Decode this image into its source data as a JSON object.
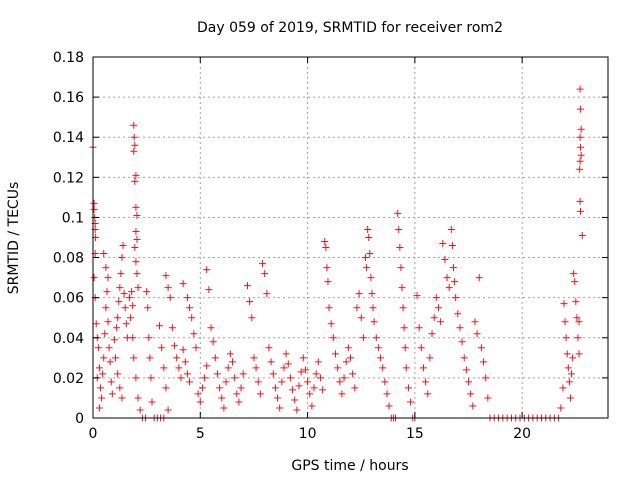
{
  "chart_data": {
    "type": "scatter",
    "title": "Day 059 of 2019, SRMTID for receiver rom2",
    "xlabel": "GPS time / hours",
    "ylabel": "SRMTID / TECUs",
    "xlim": [
      0,
      24
    ],
    "ylim": [
      0,
      0.18
    ],
    "x_ticks": [
      0,
      5,
      10,
      15,
      20
    ],
    "x_tick_labels": [
      "0",
      "5",
      "10",
      "15",
      "20"
    ],
    "y_ticks": [
      0,
      0.02,
      0.04,
      0.06,
      0.08,
      0.1,
      0.12,
      0.14,
      0.16,
      0.18
    ],
    "y_tick_labels": [
      "0",
      "0.02",
      "0.04",
      "0.06",
      "0.08",
      "0.1",
      "0.12",
      "0.14",
      "0.16",
      "0.18"
    ],
    "grid": true,
    "marker": "+",
    "series": [
      {
        "name": "SRMTID",
        "color": "#e41a1c",
        "points": [
          [
            0.0,
            0.135
          ],
          [
            0.05,
            0.107
          ],
          [
            0.05,
            0.104
          ],
          [
            0.08,
            0.1
          ],
          [
            0.1,
            0.097
          ],
          [
            0.1,
            0.094
          ],
          [
            0.12,
            0.09
          ],
          [
            0.1,
            0.082
          ],
          [
            0.05,
            0.07
          ],
          [
            0.1,
            0.06
          ],
          [
            0.15,
            0.047
          ],
          [
            0.2,
            0.04
          ],
          [
            0.25,
            0.035
          ],
          [
            0.3,
            0.025
          ],
          [
            0.2,
            0.02
          ],
          [
            0.35,
            0.015
          ],
          [
            0.4,
            0.01
          ],
          [
            0.3,
            0.005
          ],
          [
            0.45,
            0.022
          ],
          [
            0.5,
            0.03
          ],
          [
            0.55,
            0.042
          ],
          [
            0.6,
            0.055
          ],
          [
            0.65,
            0.063
          ],
          [
            0.7,
            0.048
          ],
          [
            0.75,
            0.035
          ],
          [
            0.8,
            0.028
          ],
          [
            0.85,
            0.018
          ],
          [
            0.9,
            0.012
          ],
          [
            0.5,
            0.082
          ],
          [
            0.6,
            0.075
          ],
          [
            0.7,
            0.07
          ],
          [
            1.0,
            0.039
          ],
          [
            1.1,
            0.045
          ],
          [
            1.15,
            0.05
          ],
          [
            1.2,
            0.058
          ],
          [
            1.25,
            0.065
          ],
          [
            1.3,
            0.072
          ],
          [
            1.35,
            0.08
          ],
          [
            1.4,
            0.086
          ],
          [
            1.45,
            0.062
          ],
          [
            1.5,
            0.055
          ],
          [
            1.55,
            0.047
          ],
          [
            1.6,
            0.04
          ],
          [
            1.05,
            0.03
          ],
          [
            1.15,
            0.022
          ],
          [
            1.25,
            0.015
          ],
          [
            1.35,
            0.01
          ],
          [
            1.7,
            0.06
          ],
          [
            1.8,
            0.063
          ],
          [
            1.85,
            0.056
          ],
          [
            1.75,
            0.05
          ],
          [
            1.9,
            0.146
          ],
          [
            1.92,
            0.14
          ],
          [
            1.95,
            0.136
          ],
          [
            1.9,
            0.133
          ],
          [
            2.0,
            0.121
          ],
          [
            1.95,
            0.118
          ],
          [
            2.0,
            0.105
          ],
          [
            2.05,
            0.101
          ],
          [
            2.0,
            0.093
          ],
          [
            2.05,
            0.089
          ],
          [
            1.95,
            0.085
          ],
          [
            2.0,
            0.078
          ],
          [
            2.05,
            0.072
          ],
          [
            2.1,
            0.065
          ],
          [
            1.85,
            0.04
          ],
          [
            1.9,
            0.03
          ],
          [
            2.0,
            0.02
          ],
          [
            2.1,
            0.01
          ],
          [
            2.2,
            0.004
          ],
          [
            2.3,
            0.0
          ],
          [
            2.45,
            0.0
          ],
          [
            2.5,
            0.063
          ],
          [
            2.55,
            0.055
          ],
          [
            2.6,
            0.04
          ],
          [
            2.65,
            0.03
          ],
          [
            2.7,
            0.02
          ],
          [
            2.75,
            0.008
          ],
          [
            2.85,
            0.0
          ],
          [
            3.0,
            0.0
          ],
          [
            3.15,
            0.0
          ],
          [
            3.3,
            0.0
          ],
          [
            3.5,
            0.004
          ],
          [
            3.1,
            0.046
          ],
          [
            3.2,
            0.035
          ],
          [
            3.3,
            0.025
          ],
          [
            3.4,
            0.015
          ],
          [
            3.4,
            0.071
          ],
          [
            3.5,
            0.065
          ],
          [
            3.6,
            0.06
          ],
          [
            3.7,
            0.045
          ],
          [
            3.8,
            0.036
          ],
          [
            3.9,
            0.03
          ],
          [
            4.0,
            0.025
          ],
          [
            4.1,
            0.02
          ],
          [
            4.2,
            0.034
          ],
          [
            4.3,
            0.028
          ],
          [
            4.4,
            0.022
          ],
          [
            4.5,
            0.018
          ],
          [
            4.2,
            0.067
          ],
          [
            4.4,
            0.06
          ],
          [
            4.5,
            0.055
          ],
          [
            4.6,
            0.05
          ],
          [
            4.7,
            0.042
          ],
          [
            4.8,
            0.035
          ],
          [
            4.9,
            0.012
          ],
          [
            5.0,
            0.008
          ],
          [
            5.1,
            0.015
          ],
          [
            5.2,
            0.02
          ],
          [
            5.3,
            0.026
          ],
          [
            5.3,
            0.074
          ],
          [
            5.4,
            0.064
          ],
          [
            5.5,
            0.045
          ],
          [
            5.6,
            0.038
          ],
          [
            5.7,
            0.03
          ],
          [
            5.8,
            0.022
          ],
          [
            5.9,
            0.015
          ],
          [
            6.0,
            0.01
          ],
          [
            6.1,
            0.005
          ],
          [
            6.2,
            0.018
          ],
          [
            6.3,
            0.025
          ],
          [
            6.4,
            0.032
          ],
          [
            6.5,
            0.028
          ],
          [
            6.6,
            0.02
          ],
          [
            6.7,
            0.012
          ],
          [
            6.8,
            0.008
          ],
          [
            6.9,
            0.015
          ],
          [
            7.0,
            0.022
          ],
          [
            7.2,
            0.066
          ],
          [
            7.3,
            0.058
          ],
          [
            7.4,
            0.05
          ],
          [
            7.5,
            0.03
          ],
          [
            7.6,
            0.025
          ],
          [
            7.7,
            0.018
          ],
          [
            7.8,
            0.012
          ],
          [
            7.9,
            0.077
          ],
          [
            8.0,
            0.072
          ],
          [
            8.1,
            0.062
          ],
          [
            8.2,
            0.035
          ],
          [
            8.3,
            0.028
          ],
          [
            8.4,
            0.022
          ],
          [
            8.5,
            0.015
          ],
          [
            8.6,
            0.01
          ],
          [
            8.7,
            0.005
          ],
          [
            8.8,
            0.018
          ],
          [
            8.9,
            0.025
          ],
          [
            9.0,
            0.032
          ],
          [
            9.1,
            0.027
          ],
          [
            9.2,
            0.02
          ],
          [
            9.3,
            0.014
          ],
          [
            9.4,
            0.009
          ],
          [
            9.5,
            0.004
          ],
          [
            9.6,
            0.016
          ],
          [
            9.7,
            0.023
          ],
          [
            9.8,
            0.03
          ],
          [
            9.9,
            0.024
          ],
          [
            10.0,
            0.018
          ],
          [
            10.1,
            0.012
          ],
          [
            10.2,
            0.006
          ],
          [
            10.3,
            0.015
          ],
          [
            10.4,
            0.022
          ],
          [
            10.5,
            0.028
          ],
          [
            10.6,
            0.02
          ],
          [
            10.7,
            0.014
          ],
          [
            10.8,
            0.088
          ],
          [
            10.85,
            0.085
          ],
          [
            10.9,
            0.075
          ],
          [
            10.95,
            0.068
          ],
          [
            11.0,
            0.055
          ],
          [
            11.1,
            0.047
          ],
          [
            11.2,
            0.04
          ],
          [
            11.3,
            0.032
          ],
          [
            11.4,
            0.025
          ],
          [
            11.5,
            0.018
          ],
          [
            11.6,
            0.012
          ],
          [
            11.7,
            0.02
          ],
          [
            11.8,
            0.028
          ],
          [
            11.9,
            0.035
          ],
          [
            12.0,
            0.03
          ],
          [
            12.1,
            0.022
          ],
          [
            12.2,
            0.015
          ],
          [
            12.3,
            0.055
          ],
          [
            12.4,
            0.062
          ],
          [
            12.5,
            0.05
          ],
          [
            12.6,
            0.04
          ],
          [
            12.7,
            0.08
          ],
          [
            12.75,
            0.075
          ],
          [
            12.8,
            0.094
          ],
          [
            12.85,
            0.09
          ],
          [
            12.9,
            0.082
          ],
          [
            12.95,
            0.07
          ],
          [
            13.0,
            0.062
          ],
          [
            13.05,
            0.055
          ],
          [
            13.1,
            0.048
          ],
          [
            13.2,
            0.04
          ],
          [
            13.3,
            0.035
          ],
          [
            13.4,
            0.03
          ],
          [
            13.5,
            0.025
          ],
          [
            13.6,
            0.018
          ],
          [
            13.7,
            0.012
          ],
          [
            13.8,
            0.006
          ],
          [
            13.9,
            0.0
          ],
          [
            14.0,
            0.0
          ],
          [
            14.1,
            0.0
          ],
          [
            14.2,
            0.102
          ],
          [
            14.25,
            0.094
          ],
          [
            14.3,
            0.085
          ],
          [
            14.35,
            0.075
          ],
          [
            14.4,
            0.065
          ],
          [
            14.45,
            0.055
          ],
          [
            14.5,
            0.045
          ],
          [
            14.55,
            0.035
          ],
          [
            14.6,
            0.025
          ],
          [
            14.7,
            0.015
          ],
          [
            14.8,
            0.008
          ],
          [
            14.9,
            0.0
          ],
          [
            15.0,
            0.0
          ],
          [
            15.1,
            0.061
          ],
          [
            15.2,
            0.045
          ],
          [
            15.3,
            0.035
          ],
          [
            15.4,
            0.025
          ],
          [
            15.5,
            0.018
          ],
          [
            15.6,
            0.012
          ],
          [
            15.7,
            0.03
          ],
          [
            15.8,
            0.042
          ],
          [
            15.9,
            0.05
          ],
          [
            16.0,
            0.06
          ],
          [
            16.1,
            0.055
          ],
          [
            16.2,
            0.048
          ],
          [
            16.3,
            0.087
          ],
          [
            16.4,
            0.079
          ],
          [
            16.5,
            0.07
          ],
          [
            16.6,
            0.065
          ],
          [
            16.7,
            0.094
          ],
          [
            16.75,
            0.086
          ],
          [
            16.8,
            0.075
          ],
          [
            16.85,
            0.068
          ],
          [
            16.9,
            0.06
          ],
          [
            17.0,
            0.052
          ],
          [
            17.1,
            0.045
          ],
          [
            17.2,
            0.038
          ],
          [
            17.3,
            0.03
          ],
          [
            17.4,
            0.024
          ],
          [
            17.5,
            0.018
          ],
          [
            17.6,
            0.012
          ],
          [
            17.7,
            0.006
          ],
          [
            17.8,
            0.048
          ],
          [
            17.9,
            0.042
          ],
          [
            18.0,
            0.07
          ],
          [
            18.1,
            0.035
          ],
          [
            18.2,
            0.028
          ],
          [
            18.3,
            0.02
          ],
          [
            18.4,
            0.01
          ],
          [
            18.5,
            0.0
          ],
          [
            18.7,
            0.0
          ],
          [
            18.9,
            0.0
          ],
          [
            19.1,
            0.0
          ],
          [
            19.3,
            0.0
          ],
          [
            19.5,
            0.0
          ],
          [
            19.7,
            0.0
          ],
          [
            19.9,
            0.0
          ],
          [
            20.1,
            0.0
          ],
          [
            20.3,
            0.0
          ],
          [
            20.5,
            0.0
          ],
          [
            20.7,
            0.0
          ],
          [
            20.9,
            0.0
          ],
          [
            21.1,
            0.0
          ],
          [
            21.3,
            0.0
          ],
          [
            21.5,
            0.0
          ],
          [
            21.7,
            0.0
          ],
          [
            21.8,
            0.005
          ],
          [
            21.9,
            0.015
          ],
          [
            21.95,
            0.057
          ],
          [
            22.0,
            0.048
          ],
          [
            22.05,
            0.04
          ],
          [
            22.1,
            0.032
          ],
          [
            22.15,
            0.025
          ],
          [
            22.2,
            0.018
          ],
          [
            22.25,
            0.01
          ],
          [
            22.3,
            0.022
          ],
          [
            22.35,
            0.03
          ],
          [
            22.4,
            0.072
          ],
          [
            22.45,
            0.068
          ],
          [
            22.5,
            0.058
          ],
          [
            22.55,
            0.05
          ],
          [
            22.6,
            0.04
          ],
          [
            22.65,
            0.032
          ],
          [
            22.7,
            0.164
          ],
          [
            22.72,
            0.154
          ],
          [
            22.75,
            0.144
          ],
          [
            22.7,
            0.14
          ],
          [
            22.72,
            0.135
          ],
          [
            22.75,
            0.131
          ],
          [
            22.7,
            0.128
          ],
          [
            22.68,
            0.124
          ],
          [
            22.7,
            0.108
          ],
          [
            22.72,
            0.103
          ],
          [
            22.8,
            0.091
          ],
          [
            22.65,
            0.048
          ]
        ]
      }
    ]
  }
}
